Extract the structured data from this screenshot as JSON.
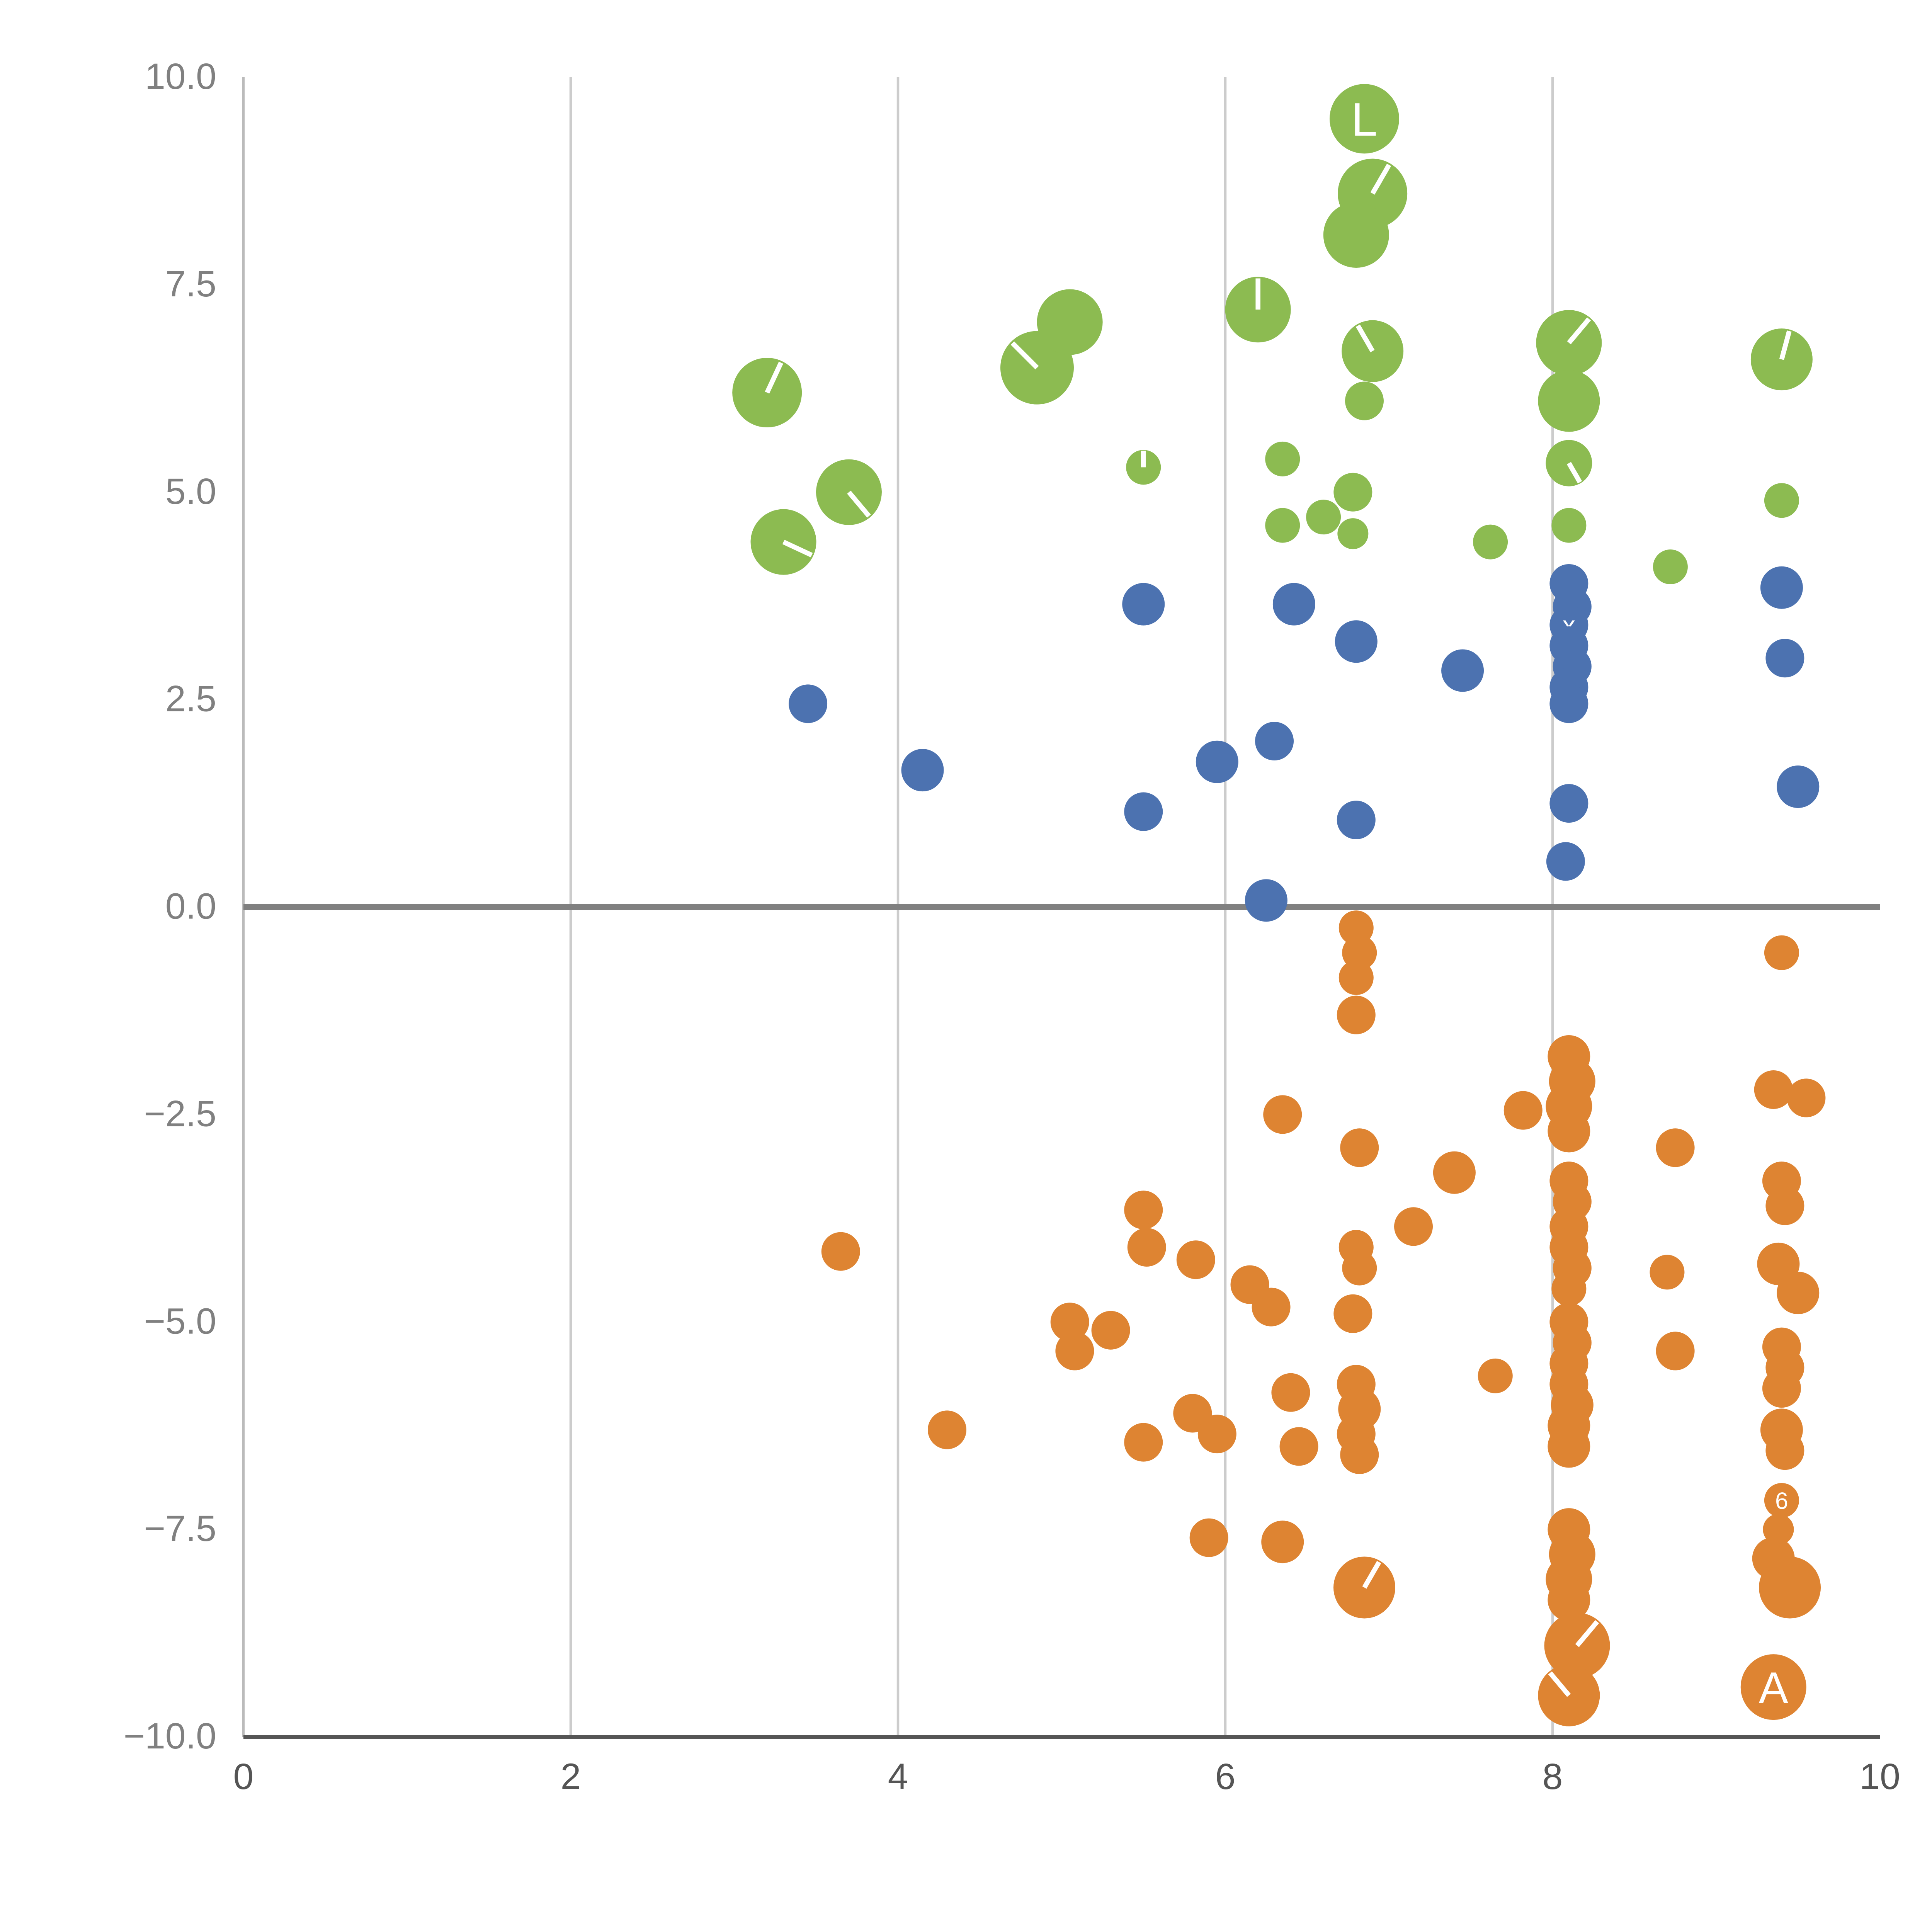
{
  "chart_data": {
    "type": "scatter",
    "title": "",
    "xlabel": "",
    "ylabel": "",
    "xlim": [
      0,
      10
    ],
    "ylim": [
      -10,
      10
    ],
    "x_ticks": [
      0,
      2,
      4,
      6,
      8,
      10
    ],
    "x_tick_labels": [
      "0",
      "2",
      "4",
      "6",
      "8",
      "10"
    ],
    "y_ticks": [
      10,
      7.5,
      5,
      2.5,
      0,
      -2.5,
      -5,
      -7.5,
      -10
    ],
    "y_tick_labels": [
      "10.0",
      "7.5",
      "5.0",
      "2.5",
      "0.0",
      "−2.5",
      "−5.0",
      "−7.5",
      "−10.0"
    ],
    "x_gridlines": [
      2,
      4,
      6,
      8
    ],
    "zero_line_y": 0,
    "grid": "vertical-only",
    "legend": "none",
    "colors": {
      "grid": "#cccccc",
      "zero_line": "#808080",
      "axis": "#555555",
      "y_axis_spine": "#bbbbbb",
      "tick_label": "#808080"
    },
    "point_format": "[x, y, radius, label, white_accent_angle_deg]",
    "series": [
      {
        "name": "green",
        "color": "#8CBB51",
        "points": [
          [
            3.2,
            6.2,
            18,
            null,
            25
          ],
          [
            3.3,
            4.4,
            17,
            null,
            115
          ],
          [
            3.7,
            5.0,
            17,
            null,
            140
          ],
          [
            4.85,
            6.5,
            19,
            null,
            315
          ],
          [
            5.05,
            7.05,
            17
          ],
          [
            6.2,
            7.2,
            17,
            null,
            0
          ],
          [
            6.85,
            9.5,
            18,
            "L"
          ],
          [
            6.9,
            8.6,
            18,
            null,
            30
          ],
          [
            6.8,
            8.1,
            17
          ],
          [
            6.9,
            6.7,
            16,
            null,
            330
          ],
          [
            6.85,
            6.1,
            10
          ],
          [
            5.5,
            5.3,
            9,
            null,
            0
          ],
          [
            6.35,
            5.4,
            9
          ],
          [
            6.35,
            4.6,
            9
          ],
          [
            6.6,
            4.7,
            9
          ],
          [
            6.78,
            5.0,
            10
          ],
          [
            6.78,
            4.5,
            8
          ],
          [
            8.1,
            6.8,
            17,
            null,
            40
          ],
          [
            8.1,
            6.1,
            16
          ],
          [
            8.1,
            5.35,
            12,
            null,
            150
          ],
          [
            8.1,
            4.6,
            9
          ],
          [
            7.62,
            4.4,
            9
          ],
          [
            8.72,
            4.1,
            9
          ],
          [
            9.4,
            6.6,
            16,
            null,
            15
          ],
          [
            9.4,
            4.9,
            9
          ]
        ]
      },
      {
        "name": "blue",
        "color": "#4C72B0",
        "points": [
          [
            3.45,
            2.45,
            10
          ],
          [
            4.15,
            1.65,
            11
          ],
          [
            5.5,
            3.65,
            11
          ],
          [
            5.5,
            1.15,
            10
          ],
          [
            5.95,
            1.75,
            11
          ],
          [
            6.3,
            2.0,
            10
          ],
          [
            6.42,
            3.65,
            11
          ],
          [
            6.25,
            0.08,
            11
          ],
          [
            6.8,
            3.2,
            11
          ],
          [
            6.8,
            1.05,
            10
          ],
          [
            7.45,
            2.85,
            11
          ],
          [
            8.1,
            3.9,
            10
          ],
          [
            8.12,
            3.62,
            10
          ],
          [
            8.1,
            3.4,
            10,
            "x"
          ],
          [
            8.1,
            3.15,
            10
          ],
          [
            8.12,
            2.9,
            10
          ],
          [
            8.1,
            2.65,
            10
          ],
          [
            8.1,
            2.45,
            10
          ],
          [
            8.1,
            1.25,
            10
          ],
          [
            8.08,
            0.55,
            10
          ],
          [
            9.4,
            3.85,
            11
          ],
          [
            9.42,
            3.0,
            10
          ],
          [
            9.5,
            1.45,
            11
          ]
        ]
      },
      {
        "name": "orange",
        "color": "#DE8432",
        "points": [
          [
            6.8,
            -0.25,
            9
          ],
          [
            6.82,
            -0.55,
            9
          ],
          [
            6.8,
            -0.85,
            9
          ],
          [
            6.8,
            -1.3,
            10
          ],
          [
            6.35,
            -2.5,
            10
          ],
          [
            6.82,
            -2.9,
            10
          ],
          [
            3.65,
            -4.15,
            10
          ],
          [
            5.5,
            -3.65,
            10
          ],
          [
            5.52,
            -4.1,
            10
          ],
          [
            5.82,
            -4.25,
            10
          ],
          [
            6.15,
            -4.55,
            10
          ],
          [
            6.28,
            -4.82,
            10
          ],
          [
            5.05,
            -5.0,
            10
          ],
          [
            5.08,
            -5.35,
            10
          ],
          [
            5.3,
            -5.1,
            10
          ],
          [
            6.78,
            -4.9,
            10
          ],
          [
            6.8,
            -4.1,
            9
          ],
          [
            6.82,
            -4.35,
            9
          ],
          [
            7.4,
            -3.2,
            11
          ],
          [
            7.15,
            -3.85,
            10
          ],
          [
            7.82,
            -2.45,
            10
          ],
          [
            8.75,
            -2.9,
            10
          ],
          [
            8.1,
            -1.8,
            11
          ],
          [
            8.12,
            -2.1,
            12
          ],
          [
            8.1,
            -2.4,
            12
          ],
          [
            8.1,
            -2.7,
            11
          ],
          [
            8.1,
            -3.3,
            10
          ],
          [
            8.12,
            -3.55,
            10
          ],
          [
            8.1,
            -3.85,
            10
          ],
          [
            8.1,
            -4.1,
            10
          ],
          [
            8.12,
            -4.35,
            10
          ],
          [
            8.1,
            -4.6,
            9
          ],
          [
            8.1,
            -5.0,
            10
          ],
          [
            8.12,
            -5.25,
            10
          ],
          [
            8.1,
            -5.5,
            10
          ],
          [
            8.1,
            -5.75,
            10
          ],
          [
            8.12,
            -6.0,
            11
          ],
          [
            8.1,
            -6.25,
            11
          ],
          [
            8.1,
            -6.5,
            11
          ],
          [
            9.4,
            -0.55,
            9
          ],
          [
            9.35,
            -2.2,
            10
          ],
          [
            9.55,
            -2.3,
            10
          ],
          [
            9.4,
            -3.3,
            10
          ],
          [
            9.42,
            -3.6,
            10
          ],
          [
            9.38,
            -4.3,
            11
          ],
          [
            9.5,
            -4.65,
            11
          ],
          [
            8.7,
            -4.4,
            9
          ],
          [
            8.75,
            -5.35,
            10
          ],
          [
            9.4,
            -5.3,
            10
          ],
          [
            9.42,
            -5.55,
            10
          ],
          [
            9.4,
            -5.8,
            10
          ],
          [
            7.65,
            -5.65,
            9
          ],
          [
            4.3,
            -6.3,
            10
          ],
          [
            5.5,
            -6.45,
            10
          ],
          [
            5.8,
            -6.1,
            10
          ],
          [
            5.95,
            -6.35,
            10
          ],
          [
            6.4,
            -5.85,
            10
          ],
          [
            6.45,
            -6.5,
            10
          ],
          [
            6.8,
            -5.75,
            10
          ],
          [
            6.82,
            -6.05,
            11
          ],
          [
            6.8,
            -6.35,
            10
          ],
          [
            6.82,
            -6.6,
            10
          ],
          [
            9.4,
            -6.3,
            11
          ],
          [
            9.42,
            -6.55,
            10
          ],
          [
            5.9,
            -7.6,
            10
          ],
          [
            6.35,
            -7.65,
            11
          ],
          [
            6.85,
            -8.2,
            16,
            null,
            30
          ],
          [
            9.4,
            -7.15,
            9,
            "6"
          ],
          [
            9.38,
            -7.5,
            8
          ],
          [
            9.35,
            -7.85,
            11
          ],
          [
            9.45,
            -8.2,
            16
          ],
          [
            8.1,
            -7.5,
            11
          ],
          [
            8.12,
            -7.8,
            12
          ],
          [
            8.1,
            -8.1,
            12
          ],
          [
            8.1,
            -8.35,
            11
          ],
          [
            8.15,
            -8.9,
            17,
            null,
            40
          ],
          [
            8.1,
            -9.5,
            16,
            null,
            320
          ],
          [
            9.35,
            -9.4,
            17,
            "A"
          ]
        ]
      }
    ]
  }
}
